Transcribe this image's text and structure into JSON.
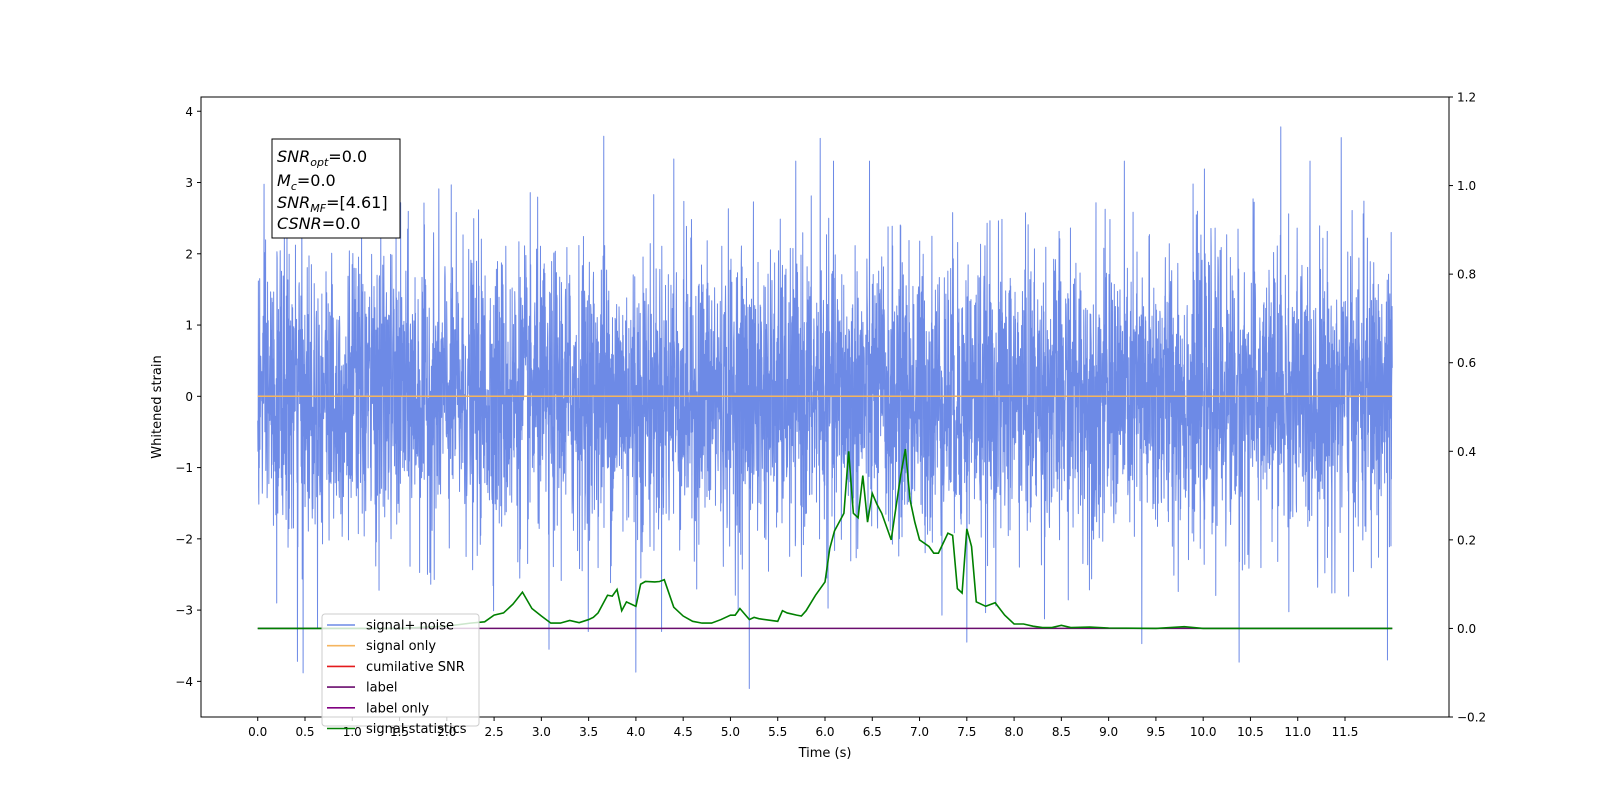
{
  "chart_data": {
    "type": "line",
    "xlabel": "Time (s)",
    "ylabel_left": "Whitened strain",
    "ylabel_right": "",
    "xlim": [
      -0.6,
      12.6
    ],
    "ylim_left": [
      -4.5,
      4.2
    ],
    "ylim_right": [
      -0.2,
      1.2
    ],
    "x_ticks": [
      "0.0",
      "0.5",
      "1.0",
      "1.5",
      "2.0",
      "2.5",
      "3.0",
      "3.5",
      "4.0",
      "4.5",
      "5.0",
      "5.5",
      "6.0",
      "6.5",
      "7.0",
      "7.5",
      "8.0",
      "8.5",
      "9.0",
      "9.5",
      "10.0",
      "10.5",
      "11.0",
      "11.5"
    ],
    "y_ticks_left": [
      "4",
      "3",
      "2",
      "1",
      "0",
      "−1",
      "−2",
      "−3",
      "−4"
    ],
    "y_ticks_right": [
      "1.2",
      "1.0",
      "0.8",
      "0.6",
      "0.4",
      "0.2",
      "0.0",
      "−0.2"
    ],
    "grid": false,
    "legend_position": "lower-left",
    "colors": {
      "signal_noise": "#6d8ae6",
      "signal_only": "#f5b55f",
      "cumulative_snr": "#e41a1c",
      "label": "#6a0d6e",
      "label_only": "#800080",
      "signal_statistics": "#008000"
    },
    "annotation": {
      "snr_opt_base": "SNR",
      "snr_opt_sub": "opt",
      "snr_opt_value": "=0.0",
      "mc_base": "M",
      "mc_sub": "c",
      "mc_value": "=0.0",
      "snr_mf_base": "SNR",
      "snr_mf_sub": "MF",
      "snr_mf_value": "=[4.61]",
      "csnr_base": "CSNR",
      "csnr_value": "=0.0"
    },
    "legend": [
      {
        "key": "signal_noise",
        "label": "signal+ noise"
      },
      {
        "key": "signal_only",
        "label": "signal only"
      },
      {
        "key": "cumulative_snr",
        "label": "cumilative SNR"
      },
      {
        "key": "label",
        "label": "label"
      },
      {
        "key": "label_only",
        "label": "label only"
      },
      {
        "key": "signal_statistics",
        "label": "signal statistics"
      }
    ],
    "series": [
      {
        "key": "signal_noise",
        "axis": "left",
        "description_range": [
          0.0,
          12.0
        ],
        "noise_std": 1.0,
        "extremes": [
          [
            0.42,
            -3.72
          ],
          [
            0.48,
            -3.88
          ],
          [
            0.2,
            2.05
          ],
          [
            3.66,
            3.65
          ],
          [
            5.95,
            3.62
          ],
          [
            10.82,
            3.78
          ],
          [
            11.46,
            3.63
          ],
          [
            5.2,
            -4.1
          ],
          [
            3.08,
            -3.55
          ],
          [
            4.0,
            -3.87
          ],
          [
            7.5,
            -3.45
          ],
          [
            9.35,
            -3.47
          ],
          [
            10.38,
            -3.73
          ],
          [
            11.95,
            -3.7
          ],
          [
            4.4,
            3.33
          ],
          [
            0.2,
            -2.9
          ]
        ]
      },
      {
        "key": "signal_only",
        "axis": "left",
        "x": [
          0.0,
          12.0
        ],
        "y": [
          0.0,
          0.0
        ]
      },
      {
        "key": "label",
        "axis": "right",
        "x": [
          0.0,
          12.0
        ],
        "y": [
          0.0,
          0.0
        ]
      },
      {
        "key": "signal_statistics",
        "axis": "right",
        "x": [
          0.0,
          0.5,
          1.0,
          1.5,
          2.0,
          2.25,
          2.4,
          2.5,
          2.6,
          2.7,
          2.8,
          2.9,
          3.0,
          3.1,
          3.2,
          3.3,
          3.4,
          3.5,
          3.55,
          3.6,
          3.7,
          3.75,
          3.8,
          3.85,
          3.9,
          4.0,
          4.05,
          4.1,
          4.2,
          4.25,
          4.3,
          4.4,
          4.5,
          4.6,
          4.7,
          4.8,
          4.9,
          5.0,
          5.05,
          5.1,
          5.2,
          5.25,
          5.3,
          5.5,
          5.55,
          5.6,
          5.7,
          5.75,
          5.8,
          5.9,
          6.0,
          6.05,
          6.1,
          6.2,
          6.25,
          6.3,
          6.35,
          6.4,
          6.45,
          6.5,
          6.55,
          6.6,
          6.7,
          6.8,
          6.85,
          6.9,
          6.95,
          7.0,
          7.1,
          7.15,
          7.2,
          7.3,
          7.35,
          7.4,
          7.45,
          7.5,
          7.55,
          7.6,
          7.7,
          7.8,
          7.9,
          8.0,
          8.1,
          8.2,
          8.3,
          8.4,
          8.5,
          8.6,
          8.8,
          9.0,
          9.5,
          9.8,
          10.0,
          10.5,
          11.0,
          11.5,
          12.0
        ],
        "y": [
          0.0,
          0.0,
          0.0,
          0.0,
          0.005,
          0.012,
          0.015,
          0.03,
          0.035,
          0.055,
          0.082,
          0.045,
          0.028,
          0.012,
          0.012,
          0.018,
          0.013,
          0.02,
          0.025,
          0.035,
          0.075,
          0.073,
          0.088,
          0.04,
          0.06,
          0.05,
          0.1,
          0.106,
          0.105,
          0.106,
          0.11,
          0.048,
          0.028,
          0.016,
          0.012,
          0.012,
          0.02,
          0.03,
          0.03,
          0.045,
          0.02,
          0.025,
          0.022,
          0.016,
          0.04,
          0.035,
          0.03,
          0.028,
          0.04,
          0.075,
          0.105,
          0.18,
          0.22,
          0.26,
          0.4,
          0.26,
          0.25,
          0.345,
          0.24,
          0.305,
          0.28,
          0.26,
          0.2,
          0.345,
          0.405,
          0.29,
          0.24,
          0.2,
          0.185,
          0.17,
          0.17,
          0.215,
          0.21,
          0.09,
          0.08,
          0.225,
          0.185,
          0.06,
          0.05,
          0.058,
          0.03,
          0.01,
          0.01,
          0.005,
          0.002,
          0.002,
          0.007,
          0.002,
          0.003,
          0.001,
          0.0,
          0.004,
          0.0,
          0.0,
          0.0,
          0.0,
          0.0
        ]
      }
    ]
  }
}
